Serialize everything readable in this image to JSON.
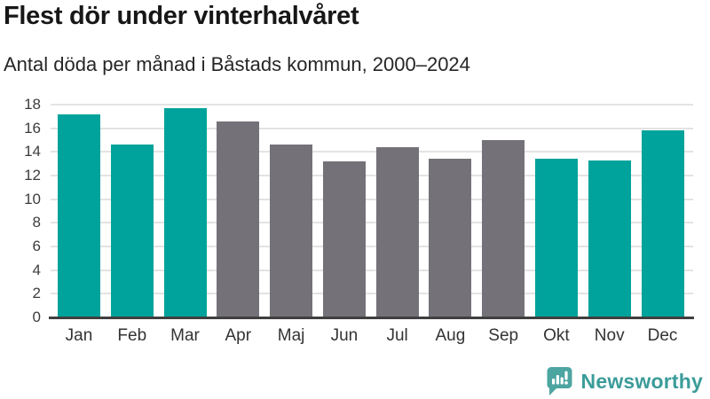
{
  "header": {
    "title": "Flest dör under vinterhalvåret",
    "subtitle": "Antal döda per månad i Båstads kommun, 2000–2024"
  },
  "chart_data": {
    "type": "bar",
    "title": "Flest dör under vinterhalvåret",
    "subtitle": "Antal döda per månad i Båstads kommun, 2000–2024",
    "categories": [
      "Jan",
      "Feb",
      "Mar",
      "Apr",
      "Maj",
      "Jun",
      "Jul",
      "Aug",
      "Sep",
      "Okt",
      "Nov",
      "Dec"
    ],
    "values": [
      17.2,
      14.6,
      17.7,
      16.6,
      14.6,
      13.2,
      14.4,
      13.4,
      15.0,
      13.4,
      13.3,
      15.8
    ],
    "bar_colors": [
      "#00a39b",
      "#00a39b",
      "#00a39b",
      "#747278",
      "#747278",
      "#747278",
      "#747278",
      "#747278",
      "#747278",
      "#00a39b",
      "#00a39b",
      "#00a39b"
    ],
    "highlight_color": "#00a39b",
    "muted_color": "#747278",
    "xlabel": "",
    "ylabel": "",
    "ylim": [
      0,
      18
    ],
    "yticks": [
      0,
      2,
      4,
      6,
      8,
      10,
      12,
      14,
      16,
      18
    ],
    "grid": true,
    "legend": "none"
  },
  "colors": {
    "gridline": "#e3e3e3",
    "axis_line": "#3f3f3f",
    "tick_label": "#3d3d3d",
    "title": "#171717",
    "subtitle": "#262626",
    "logo": "#3b9c99",
    "logo_icon_bg": "#4ca5a1",
    "logo_icon_fg": "#ffffff"
  },
  "branding": {
    "logo_text": "Newsworthy",
    "logo_icon": "bar-chart-speech-bubble-icon"
  }
}
